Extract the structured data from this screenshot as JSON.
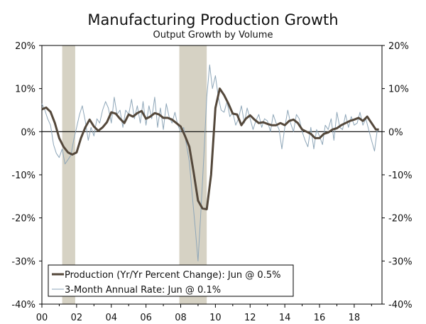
{
  "chart_data": {
    "type": "line",
    "title": "Manufacturing Production Growth",
    "subtitle": "Output Growth by Volume",
    "xlabel": "",
    "ylabel": "",
    "x_ticks": [
      "00",
      "02",
      "04",
      "06",
      "08",
      "10",
      "12",
      "14",
      "16",
      "18"
    ],
    "x_tick_years": [
      2000,
      2002,
      2004,
      2006,
      2008,
      2010,
      2012,
      2014,
      2016,
      2018
    ],
    "xlim": [
      2000,
      2019.6
    ],
    "y_ticks_left": [
      "20%",
      "10%",
      "0%",
      "-10%",
      "-20%",
      "-30%",
      "-40%"
    ],
    "y_ticks_right": [
      "20%",
      "10%",
      "0%",
      "-10%",
      "-20%",
      "-30%",
      "-40%"
    ],
    "y_tick_values": [
      20,
      10,
      0,
      -10,
      -20,
      -30,
      -40
    ],
    "ylim": [
      -40,
      20
    ],
    "recessions": [
      {
        "start": 2001.17,
        "end": 2001.92
      },
      {
        "start": 2007.92,
        "end": 2009.5
      }
    ],
    "colors": {
      "production": "#54483b",
      "annual_rate": "#8ea6b8",
      "recession": "#d6d2c4",
      "axis": "#000000"
    },
    "legend": {
      "position": "bottom-left",
      "entries": [
        "Production (Yr/Yr Percent Change): Jun @ 0.5%",
        "3-Month Annual Rate: Jun @ 0.1%"
      ]
    },
    "series": [
      {
        "name": "Production (Yr/Yr Percent Change)",
        "x": [
          2000.0,
          2000.25,
          2000.5,
          2000.75,
          2001.0,
          2001.25,
          2001.5,
          2001.75,
          2002.0,
          2002.25,
          2002.5,
          2002.75,
          2003.0,
          2003.25,
          2003.5,
          2003.75,
          2004.0,
          2004.25,
          2004.5,
          2004.75,
          2005.0,
          2005.25,
          2005.5,
          2005.75,
          2006.0,
          2006.25,
          2006.5,
          2006.75,
          2007.0,
          2007.25,
          2007.5,
          2007.75,
          2008.0,
          2008.25,
          2008.5,
          2008.75,
          2009.0,
          2009.25,
          2009.5,
          2009.75,
          2010.0,
          2010.25,
          2010.5,
          2010.75,
          2011.0,
          2011.25,
          2011.5,
          2011.75,
          2012.0,
          2012.25,
          2012.5,
          2012.75,
          2013.0,
          2013.25,
          2013.5,
          2013.75,
          2014.0,
          2014.25,
          2014.5,
          2014.75,
          2015.0,
          2015.25,
          2015.5,
          2015.75,
          2016.0,
          2016.25,
          2016.5,
          2016.75,
          2017.0,
          2017.25,
          2017.5,
          2017.75,
          2018.0,
          2018.25,
          2018.5,
          2018.75,
          2019.0,
          2019.25,
          2019.42
        ],
        "values": [
          5.2,
          5.6,
          4.6,
          2.0,
          -1.5,
          -3.5,
          -4.8,
          -5.3,
          -4.8,
          -1.5,
          1.0,
          2.8,
          1.2,
          0.2,
          1.0,
          2.2,
          4.5,
          4.2,
          3.0,
          2.0,
          4.0,
          3.5,
          4.3,
          4.8,
          3.0,
          3.5,
          4.3,
          4.0,
          3.2,
          3.2,
          2.8,
          2.0,
          1.2,
          -1.0,
          -3.5,
          -9.5,
          -16.0,
          -17.8,
          -18.0,
          -10.0,
          5.5,
          10.0,
          8.5,
          6.5,
          4.2,
          4.0,
          1.5,
          3.0,
          3.8,
          2.8,
          2.0,
          2.2,
          1.8,
          1.5,
          1.5,
          2.0,
          1.5,
          2.5,
          2.8,
          2.0,
          0.5,
          0.0,
          -0.5,
          -1.5,
          -1.5,
          -0.5,
          -0.2,
          0.5,
          0.8,
          1.5,
          2.0,
          2.5,
          2.8,
          3.2,
          2.5,
          3.5,
          2.0,
          0.5,
          0.5
        ]
      },
      {
        "name": "3-Month Annual Rate",
        "x": [
          2000.0,
          2000.17,
          2000.33,
          2000.5,
          2000.67,
          2000.83,
          2001.0,
          2001.17,
          2001.33,
          2001.5,
          2001.67,
          2001.83,
          2002.0,
          2002.17,
          2002.33,
          2002.5,
          2002.67,
          2002.83,
          2003.0,
          2003.17,
          2003.33,
          2003.5,
          2003.67,
          2003.83,
          2004.0,
          2004.17,
          2004.33,
          2004.5,
          2004.67,
          2004.83,
          2005.0,
          2005.17,
          2005.33,
          2005.5,
          2005.67,
          2005.83,
          2006.0,
          2006.17,
          2006.33,
          2006.5,
          2006.67,
          2006.83,
          2007.0,
          2007.17,
          2007.33,
          2007.5,
          2007.67,
          2007.83,
          2008.0,
          2008.17,
          2008.33,
          2008.5,
          2008.67,
          2008.83,
          2009.0,
          2009.17,
          2009.33,
          2009.5,
          2009.67,
          2009.83,
          2010.0,
          2010.17,
          2010.33,
          2010.5,
          2010.67,
          2010.83,
          2011.0,
          2011.17,
          2011.33,
          2011.5,
          2011.67,
          2011.83,
          2012.0,
          2012.17,
          2012.33,
          2012.5,
          2012.67,
          2012.83,
          2013.0,
          2013.17,
          2013.33,
          2013.5,
          2013.67,
          2013.83,
          2014.0,
          2014.17,
          2014.33,
          2014.5,
          2014.67,
          2014.83,
          2015.0,
          2015.17,
          2015.33,
          2015.5,
          2015.67,
          2015.83,
          2016.0,
          2016.17,
          2016.33,
          2016.5,
          2016.67,
          2016.83,
          2017.0,
          2017.17,
          2017.33,
          2017.5,
          2017.67,
          2017.83,
          2018.0,
          2018.17,
          2018.33,
          2018.5,
          2018.67,
          2018.83,
          2019.0,
          2019.17,
          2019.33,
          2019.42
        ],
        "values": [
          6.5,
          5.0,
          3.0,
          1.5,
          -3.0,
          -5.0,
          -6.0,
          -4.0,
          -7.5,
          -6.5,
          -5.5,
          -2.0,
          1.0,
          4.0,
          6.0,
          2.5,
          -2.0,
          1.0,
          -1.0,
          3.0,
          2.0,
          5.0,
          7.0,
          5.5,
          2.0,
          8.0,
          4.0,
          5.0,
          1.0,
          5.0,
          4.0,
          7.5,
          3.0,
          6.0,
          2.0,
          7.0,
          1.5,
          6.0,
          3.0,
          8.0,
          1.0,
          5.5,
          0.5,
          6.5,
          3.5,
          2.0,
          4.5,
          1.5,
          0.0,
          1.0,
          -3.0,
          -7.0,
          -15.0,
          -22.0,
          -30.0,
          -18.0,
          -6.0,
          8.0,
          15.5,
          10.0,
          13.0,
          8.0,
          5.0,
          4.5,
          7.0,
          3.5,
          4.5,
          1.5,
          3.0,
          6.0,
          2.0,
          5.5,
          3.0,
          0.5,
          2.5,
          4.0,
          1.0,
          3.0,
          2.5,
          0.0,
          4.0,
          2.0,
          0.5,
          -4.0,
          1.0,
          5.0,
          2.0,
          0.0,
          4.0,
          3.0,
          0.0,
          -2.0,
          -3.5,
          1.0,
          -4.0,
          0.5,
          -1.0,
          -3.0,
          1.5,
          0.5,
          3.0,
          -2.0,
          4.5,
          1.0,
          0.5,
          4.0,
          1.0,
          3.5,
          1.5,
          2.0,
          4.5,
          1.5,
          3.0,
          0.5,
          -2.0,
          -4.5,
          0.5,
          0.1
        ]
      }
    ]
  }
}
